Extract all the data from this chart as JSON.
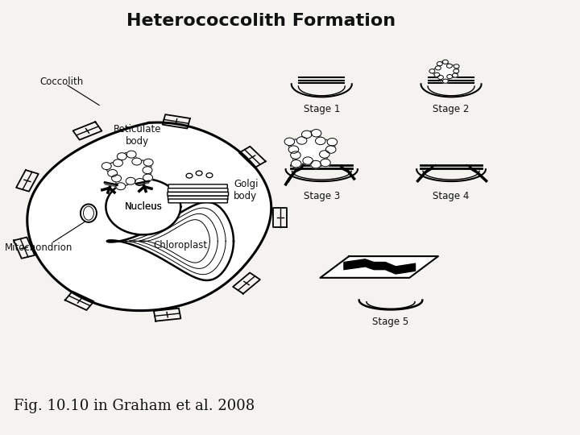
{
  "title": "Heterococcolith Formation",
  "title_fontsize": 16,
  "title_fontweight": "bold",
  "caption": "Fig. 10.10 in Graham et al. 2008",
  "caption_fontsize": 13,
  "bg_color": "#f5f3ef",
  "text_color": "#111111",
  "labels": {
    "coccolith": "Coccolith",
    "reticulate_body": "Reticulate\nbody",
    "golgi_body": "Golgi\nbody",
    "nucleus": "Nucleus",
    "chloroplast": "Chloroplast",
    "mitochondrion": "Mitochondrion",
    "stage1": "Stage 1",
    "stage2": "Stage 2",
    "stage3": "Stage 3",
    "stage4": "Stage 4",
    "stage5": "Stage 5"
  },
  "label_fontsize": 8.5
}
